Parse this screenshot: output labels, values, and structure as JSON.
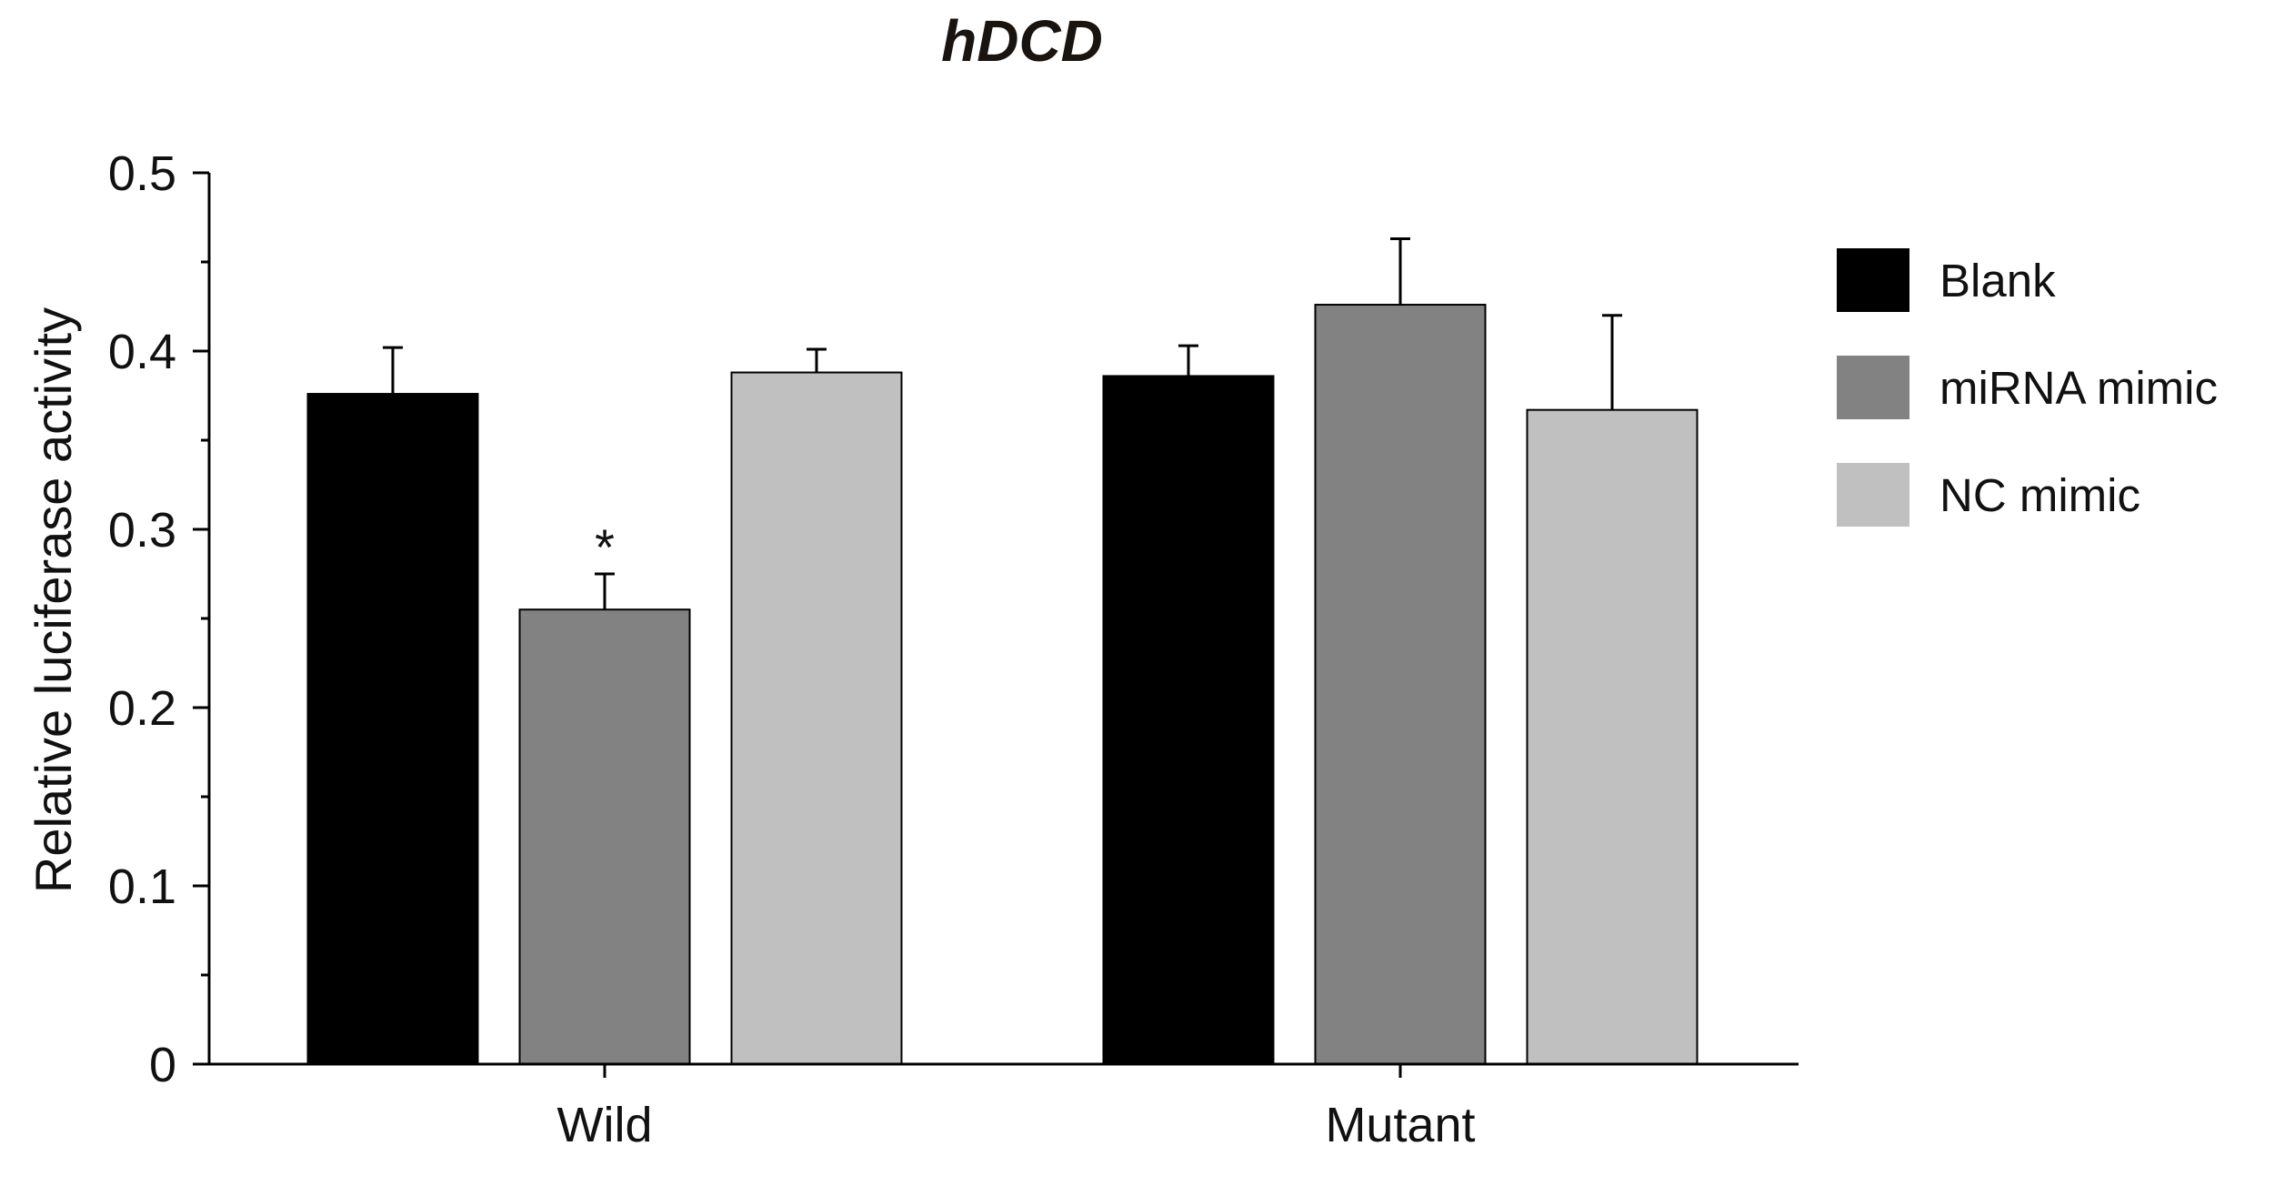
{
  "chart_data": {
    "type": "bar",
    "title": "hDCD",
    "xlabel": "",
    "ylabel": "Relative luciferase activity",
    "ylim": [
      0,
      0.5
    ],
    "yticks": [
      "0",
      "0.1",
      "0.2",
      "0.3",
      "0.4",
      "0.5"
    ],
    "yticks_values": [
      0,
      0.1,
      0.2,
      0.3,
      0.4,
      0.5
    ],
    "categories": [
      "Wild",
      "Mutant"
    ],
    "series": [
      {
        "name": "Blank",
        "color": "#000000",
        "values": [
          0.376,
          0.386
        ],
        "errors": [
          0.026,
          0.017
        ]
      },
      {
        "name": "miRNA mimic",
        "color": "#828282",
        "values": [
          0.255,
          0.426
        ],
        "errors": [
          0.02,
          0.037
        ]
      },
      {
        "name": "NC mimic",
        "color": "#c0c0c0",
        "values": [
          0.388,
          0.367
        ],
        "errors": [
          0.013,
          0.053
        ]
      }
    ],
    "annotations": [
      {
        "text": "*",
        "category": "Wild",
        "series": "miRNA mimic"
      }
    ],
    "legend_position": "right",
    "grid": false
  }
}
